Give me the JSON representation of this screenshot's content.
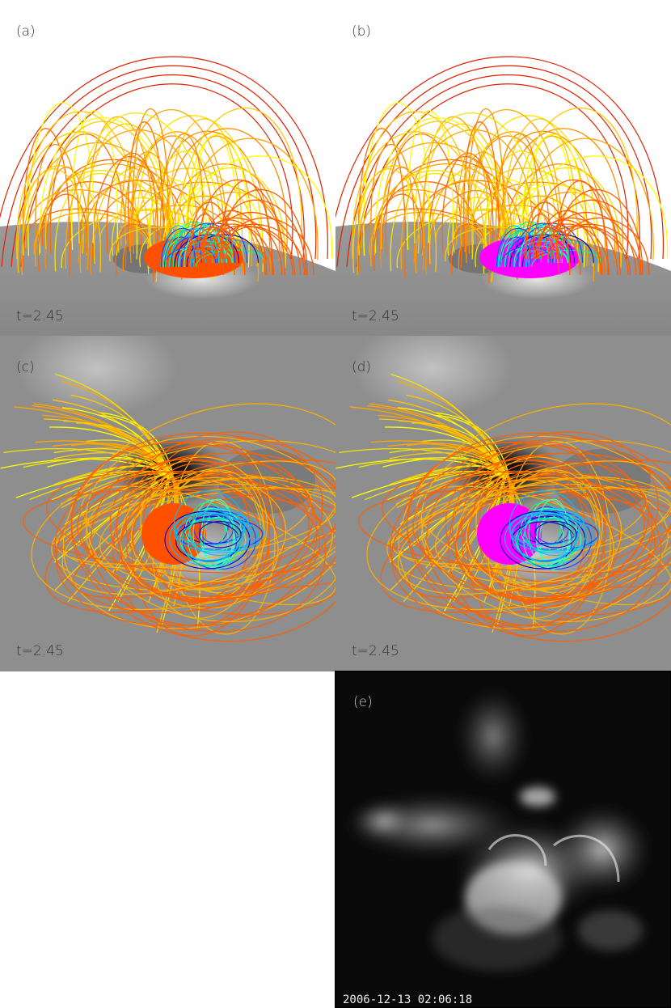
{
  "panels": [
    {
      "label": "(a)",
      "time": "t=2.45"
    },
    {
      "label": "(b)",
      "time": "t=2.45"
    },
    {
      "label": "(c)",
      "time": "t=2.45"
    },
    {
      "label": "(d)",
      "time": "t=2.45"
    },
    {
      "label": "(e)",
      "timestamp": "2006-12-13 02:06:18"
    }
  ]
}
